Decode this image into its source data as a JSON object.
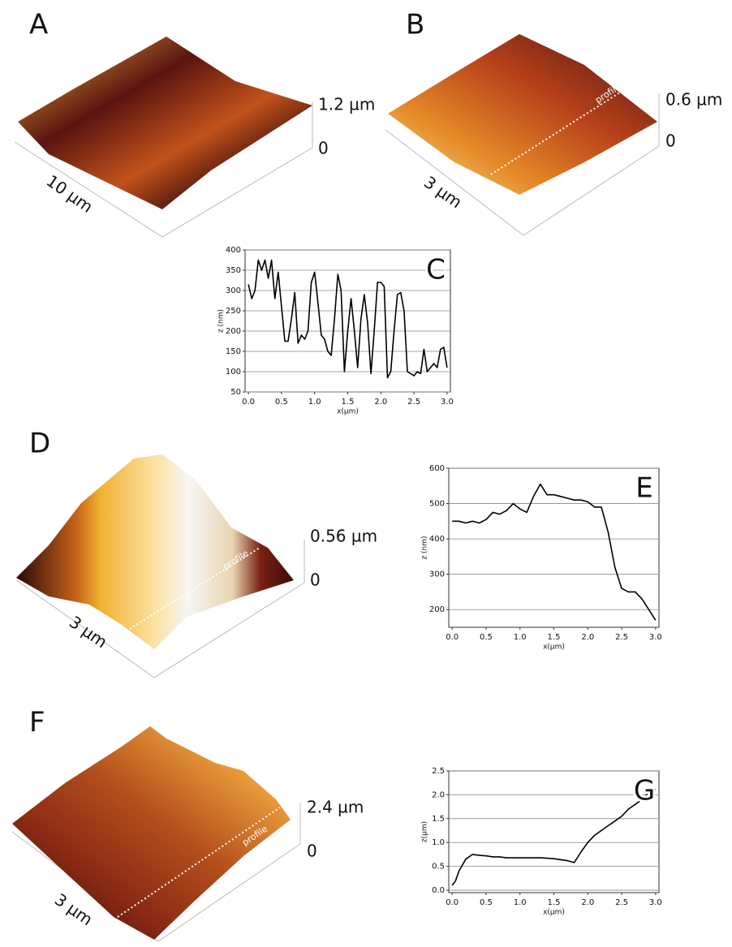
{
  "panels": [
    {
      "label": "A",
      "scale_top": "1.2 µm",
      "scale_bottom": "0",
      "size": "10 µm"
    },
    {
      "label": "B",
      "scale_top": "0.6 µm",
      "scale_bottom": "0",
      "size": "3 µm",
      "profile": "profile"
    },
    {
      "label": "D",
      "scale_top": "0.56 µm",
      "scale_bottom": "0",
      "size": "3 µm",
      "profile": "profile"
    },
    {
      "label": "F",
      "scale_top": "2.4 µm",
      "scale_bottom": "0",
      "size": "3 µm",
      "profile": "profile"
    }
  ],
  "chart_data": [
    {
      "type": "line",
      "label": "C",
      "x_label": "x(µm)",
      "y_label": "z (nm)",
      "color": "#000000",
      "grid": true,
      "xlim": [
        -0.05,
        3.05
      ],
      "ylim": [
        50,
        400
      ],
      "xticks": [
        {
          "value": 0,
          "label": "0.0"
        },
        {
          "value": 0.5,
          "label": "0.5"
        },
        {
          "value": 1,
          "label": "1.0"
        },
        {
          "value": 1.5,
          "label": "1.5"
        },
        {
          "value": 2,
          "label": "2.0"
        },
        {
          "value": 2.5,
          "label": "2.5"
        },
        {
          "value": 3,
          "label": "3.0"
        }
      ],
      "yticks": [
        50,
        100,
        150,
        200,
        250,
        300,
        350,
        400
      ],
      "x": [
        0,
        0.05,
        0.1,
        0.15,
        0.2,
        0.25,
        0.3,
        0.35,
        0.4,
        0.45,
        0.5,
        0.55,
        0.6,
        0.65,
        0.7,
        0.75,
        0.8,
        0.85,
        0.9,
        0.95,
        1.0,
        1.05,
        1.1,
        1.15,
        1.2,
        1.25,
        1.3,
        1.35,
        1.4,
        1.45,
        1.5,
        1.55,
        1.6,
        1.65,
        1.7,
        1.75,
        1.8,
        1.85,
        1.9,
        1.95,
        2.0,
        2.05,
        2.1,
        2.15,
        2.2,
        2.25,
        2.3,
        2.35,
        2.4,
        2.45,
        2.5,
        2.55,
        2.6,
        2.65,
        2.7,
        2.75,
        2.8,
        2.85,
        2.9,
        2.95,
        3.0
      ],
      "values": [
        315,
        280,
        300,
        375,
        350,
        375,
        330,
        375,
        280,
        345,
        260,
        175,
        175,
        230,
        295,
        170,
        190,
        180,
        200,
        320,
        345,
        270,
        190,
        180,
        150,
        140,
        230,
        340,
        300,
        100,
        200,
        280,
        200,
        110,
        230,
        290,
        220,
        95,
        200,
        320,
        320,
        310,
        85,
        100,
        200,
        290,
        295,
        250,
        100,
        95,
        90,
        100,
        95,
        155,
        100,
        110,
        120,
        110,
        155,
        160,
        110
      ]
    },
    {
      "type": "line",
      "label": "E",
      "x_label": "x(µm)",
      "y_label": "z (nm)",
      "color": "#000000",
      "grid": true,
      "xlim": [
        -0.05,
        3.05
      ],
      "ylim": [
        150,
        600
      ],
      "xticks": [
        {
          "value": 0,
          "label": "0.0"
        },
        {
          "value": 0.5,
          "label": "0.5"
        },
        {
          "value": 1,
          "label": "1.0"
        },
        {
          "value": 1.5,
          "label": "1.5"
        },
        {
          "value": 2,
          "label": "2.0"
        },
        {
          "value": 2.5,
          "label": "2.5"
        },
        {
          "value": 3,
          "label": "3.0"
        }
      ],
      "yticks": [
        200,
        300,
        400,
        500,
        600
      ],
      "x": [
        0,
        0.1,
        0.2,
        0.3,
        0.4,
        0.5,
        0.6,
        0.7,
        0.8,
        0.9,
        1.0,
        1.1,
        1.2,
        1.3,
        1.4,
        1.5,
        1.6,
        1.7,
        1.8,
        1.9,
        2.0,
        2.1,
        2.2,
        2.3,
        2.4,
        2.5,
        2.6,
        2.7,
        2.8,
        2.9,
        3.0
      ],
      "values": [
        450,
        450,
        445,
        450,
        445,
        455,
        475,
        470,
        480,
        500,
        485,
        475,
        520,
        555,
        525,
        525,
        520,
        515,
        510,
        510,
        505,
        490,
        490,
        420,
        320,
        260,
        250,
        250,
        230,
        200,
        170
      ]
    },
    {
      "type": "line",
      "label": "G",
      "x_label": "x(µm)",
      "y_label": "z(µm)",
      "color": "#000000",
      "grid": true,
      "xlim": [
        -0.05,
        3.05
      ],
      "ylim": [
        -0.05,
        2.5
      ],
      "xticks": [
        {
          "value": 0,
          "label": "0.0"
        },
        {
          "value": 0.5,
          "label": "0.5"
        },
        {
          "value": 1,
          "label": "1.0"
        },
        {
          "value": 1.5,
          "label": "1.5"
        },
        {
          "value": 2,
          "label": "2.0"
        },
        {
          "value": 2.5,
          "label": "2.5"
        },
        {
          "value": 3,
          "label": "3.0"
        }
      ],
      "yticks": [
        {
          "value": 0,
          "label": "0.0"
        },
        {
          "value": 0.5,
          "label": "0.5"
        },
        {
          "value": 1,
          "label": "1.0"
        },
        {
          "value": 1.5,
          "label": "1.5"
        },
        {
          "value": 2,
          "label": "2.0"
        },
        {
          "value": 2.5,
          "label": "2.5"
        }
      ],
      "x": [
        0,
        0.05,
        0.1,
        0.2,
        0.3,
        0.4,
        0.5,
        0.6,
        0.7,
        0.8,
        0.9,
        1.0,
        1.1,
        1.2,
        1.3,
        1.4,
        1.5,
        1.6,
        1.7,
        1.8,
        1.9,
        2.0,
        2.1,
        2.2,
        2.3,
        2.4,
        2.5,
        2.6,
        2.7,
        2.8,
        2.9,
        3.0
      ],
      "values": [
        0.1,
        0.2,
        0.4,
        0.65,
        0.75,
        0.73,
        0.72,
        0.7,
        0.7,
        0.68,
        0.68,
        0.68,
        0.68,
        0.68,
        0.68,
        0.67,
        0.66,
        0.64,
        0.62,
        0.58,
        0.8,
        1.0,
        1.15,
        1.25,
        1.35,
        1.45,
        1.55,
        1.7,
        1.8,
        1.9,
        2.05,
        2.12
      ]
    }
  ]
}
